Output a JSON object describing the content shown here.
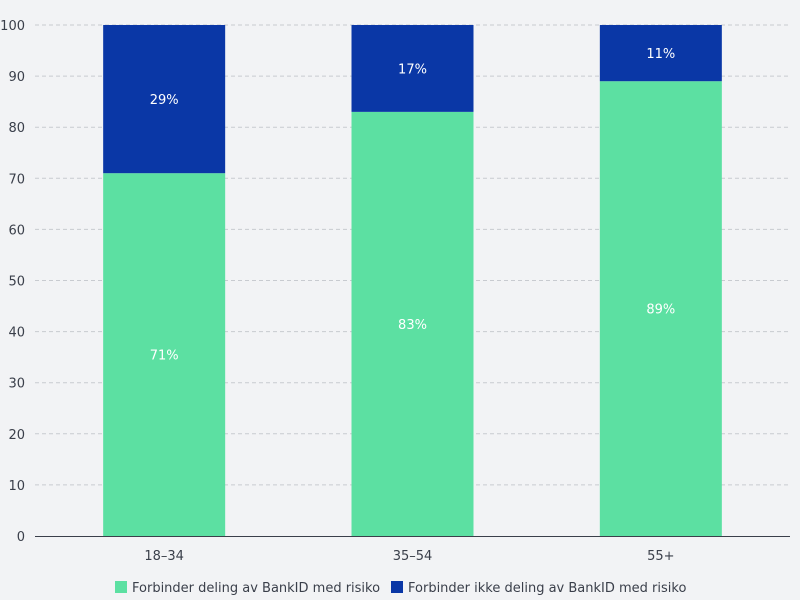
{
  "chart_data": {
    "type": "bar",
    "stacked": true,
    "categories": [
      "18–34",
      "35–54",
      "55+"
    ],
    "series": [
      {
        "name": "Forbinder deling av BankID med risiko",
        "values": [
          71,
          83,
          89
        ],
        "labels": [
          "71%",
          "83%",
          "89%"
        ],
        "color": "#5ce0a2"
      },
      {
        "name": "Forbinder ikke deling av BankID med risiko",
        "values": [
          29,
          17,
          11
        ],
        "labels": [
          "29%",
          "17%",
          "11%"
        ],
        "color": "#0a37a6"
      }
    ],
    "ylim": [
      0,
      100
    ],
    "yticks": [
      0,
      10,
      20,
      30,
      40,
      50,
      60,
      70,
      80,
      90,
      100
    ],
    "title": "",
    "xlabel": "",
    "ylabel": "",
    "grid": true,
    "legend_position": "bottom"
  }
}
